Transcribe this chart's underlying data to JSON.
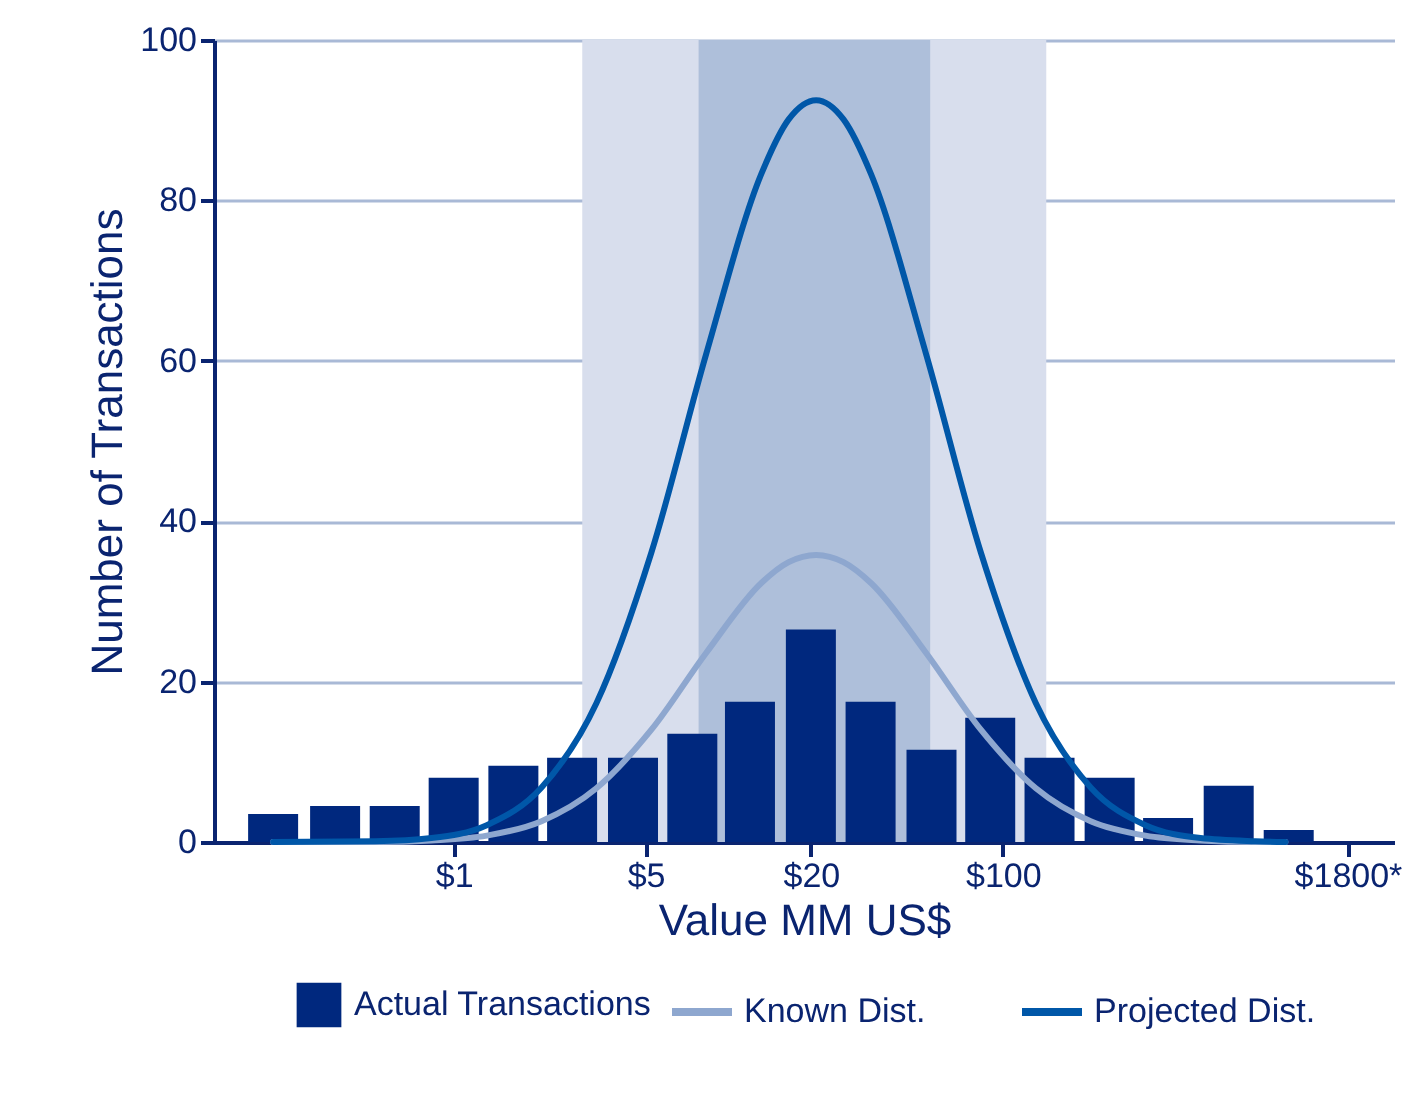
{
  "chart_data": {
    "type": "bar",
    "xlabel": "Value MM US$",
    "ylabel": "Number of Transactions",
    "x": [
      0.22,
      0.37,
      0.61,
      1,
      1.65,
      2.7,
      4.5,
      7.4,
      12,
      20,
      33,
      55,
      90,
      148,
      245,
      400,
      665,
      1100
    ],
    "series": [
      {
        "name": "Actual Transactions",
        "color": "#00287e",
        "values": [
          3.5,
          4.5,
          4.5,
          8,
          9.5,
          10.5,
          10.5,
          13.5,
          17.5,
          26.5,
          17.5,
          11.5,
          15.5,
          10.5,
          8,
          3,
          7,
          1.5
        ]
      },
      {
        "name": "Known Dist.",
        "type": "line",
        "color": "#8ea7cf",
        "x": [
          0.22,
          0.52,
          0.83,
          1.32,
          2.09,
          3.31,
          5.25,
          8.32,
          13.2,
          16.6,
          20.9,
          26.3,
          33.1,
          52.5,
          83.2,
          132,
          209,
          331,
          525,
          832,
          1070
        ],
        "values": [
          0,
          0,
          0.2,
          0.8,
          2.6,
          6.7,
          14,
          23.6,
          32.3,
          34.9,
          35.8,
          34.9,
          32.3,
          23.6,
          14,
          6.7,
          2.6,
          0.8,
          0.2,
          0,
          0
        ]
      },
      {
        "name": "Projected Dist.",
        "type": "line",
        "color": "#0057a8",
        "x": [
          0.22,
          0.52,
          0.83,
          1.32,
          2.09,
          3.31,
          5.25,
          8.32,
          13.2,
          16.6,
          20.9,
          26.3,
          33.1,
          52.5,
          83.2,
          132,
          209,
          331,
          525,
          832,
          1070
        ],
        "values": [
          0,
          0.1,
          0.5,
          2.1,
          6.8,
          17.3,
          36.1,
          60.9,
          83.3,
          90.1,
          92.5,
          90.1,
          83.3,
          60.9,
          36.1,
          17.3,
          6.8,
          2.1,
          0.5,
          0.1,
          0
        ]
      }
    ],
    "log": "x",
    "xlim": [
      0.134,
      2660
    ],
    "xticks": [
      {
        "value": 1,
        "label": "$1"
      },
      {
        "value": 5,
        "label": "$5"
      },
      {
        "value": 20,
        "label": "$20"
      },
      {
        "value": 100,
        "label": "$100"
      },
      {
        "value": 1800,
        "label": "$1800*"
      }
    ],
    "ylim": [
      0,
      100
    ],
    "yticks": [
      0,
      20,
      40,
      60,
      80,
      100
    ],
    "grid": "y",
    "legend": "bottom",
    "bands": [
      {
        "axis": "x",
        "from": 2.94,
        "to": 144,
        "color": "#d8deed"
      },
      {
        "axis": "x",
        "from": 7.8,
        "to": 54.4,
        "color": "#aebfda"
      }
    ]
  }
}
